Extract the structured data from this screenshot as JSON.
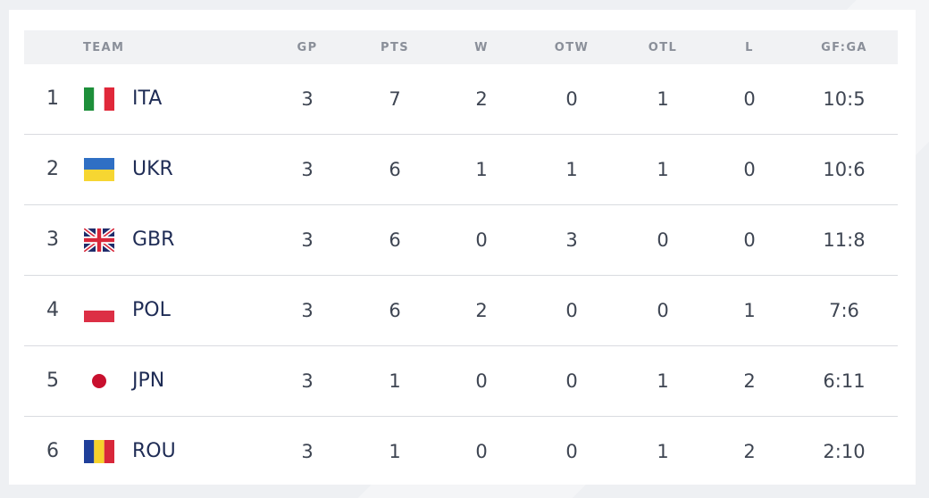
{
  "header": {
    "team": "TEAM",
    "gp": "GP",
    "pts": "PTS",
    "w": "W",
    "otw": "OTW",
    "otl": "OTL",
    "l": "L",
    "gfga": "GF:GA"
  },
  "rows": [
    {
      "rank": "1",
      "code": "ITA",
      "flag": "italy-flag-icon",
      "gp": "3",
      "pts": "7",
      "w": "2",
      "otw": "0",
      "otl": "1",
      "l": "0",
      "gfga": "10:5"
    },
    {
      "rank": "2",
      "code": "UKR",
      "flag": "ukraine-flag-icon",
      "gp": "3",
      "pts": "6",
      "w": "1",
      "otw": "1",
      "otl": "1",
      "l": "0",
      "gfga": "10:6"
    },
    {
      "rank": "3",
      "code": "GBR",
      "flag": "great-britain-flag-icon",
      "gp": "3",
      "pts": "6",
      "w": "0",
      "otw": "3",
      "otl": "0",
      "l": "0",
      "gfga": "11:8"
    },
    {
      "rank": "4",
      "code": "POL",
      "flag": "poland-flag-icon",
      "gp": "3",
      "pts": "6",
      "w": "2",
      "otw": "0",
      "otl": "0",
      "l": "1",
      "gfga": "7:6"
    },
    {
      "rank": "5",
      "code": "JPN",
      "flag": "japan-flag-icon",
      "gp": "3",
      "pts": "1",
      "w": "0",
      "otw": "0",
      "otl": "1",
      "l": "2",
      "gfga": "6:11"
    },
    {
      "rank": "6",
      "code": "ROU",
      "flag": "romania-flag-icon",
      "gp": "3",
      "pts": "1",
      "w": "0",
      "otw": "0",
      "otl": "1",
      "l": "2",
      "gfga": "2:10"
    }
  ],
  "colors": {
    "team_code": "#1f2c55",
    "text": "#3e4552",
    "header_bg": "#f1f2f4",
    "header_text": "#8a8f99",
    "divider": "#d9dbe0"
  }
}
